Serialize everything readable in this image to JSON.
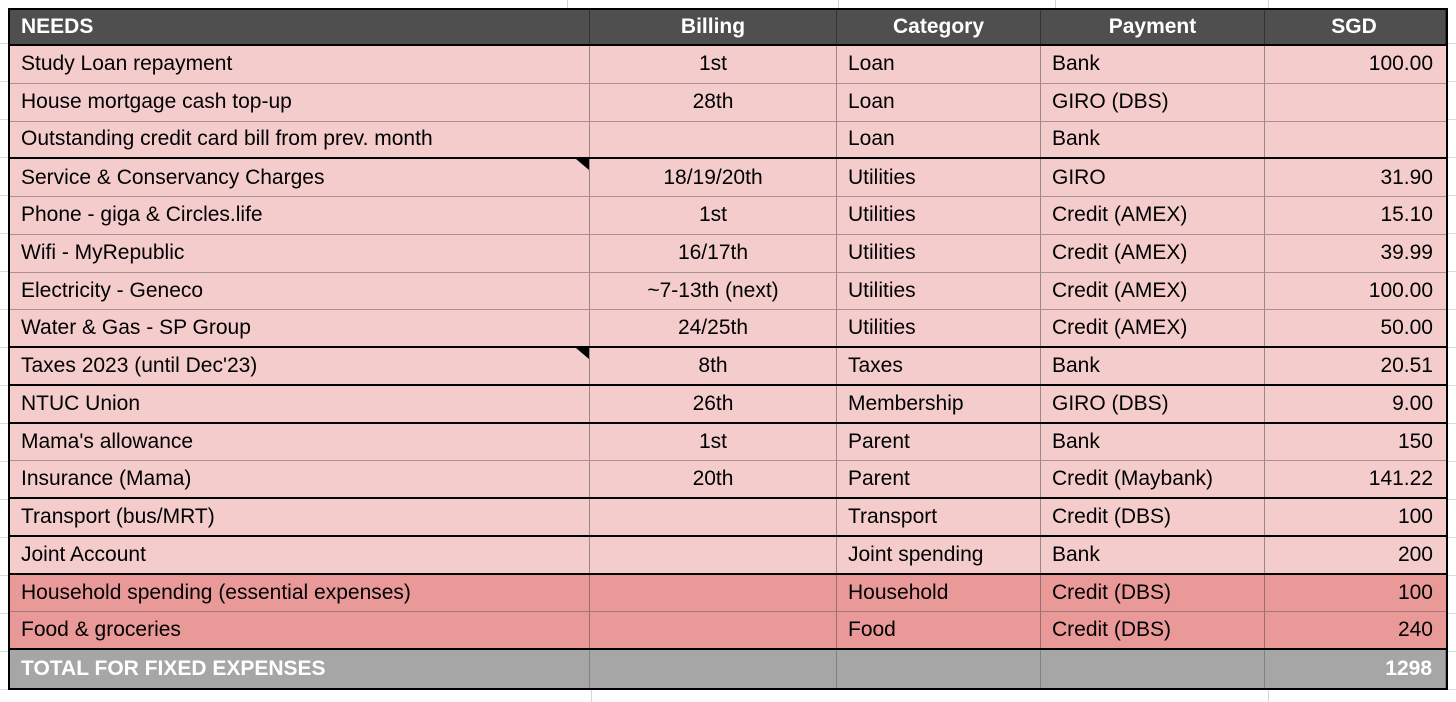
{
  "table": {
    "columns": [
      {
        "label": "NEEDS",
        "align": "left"
      },
      {
        "label": "Billing",
        "align": "center"
      },
      {
        "label": "Category",
        "align": "left"
      },
      {
        "label": "Payment",
        "align": "left"
      },
      {
        "label": "SGD",
        "align": "right"
      }
    ],
    "rows": [
      {
        "name": "Study Loan repayment",
        "billing": "1st",
        "category": "Loan",
        "payment": "Bank",
        "sgd": "100.00",
        "tone": "pink",
        "group_end": false,
        "note": false
      },
      {
        "name": "House mortgage cash top-up",
        "billing": "28th",
        "category": "Loan",
        "payment": "GIRO (DBS)",
        "sgd": "",
        "tone": "pink",
        "group_end": false,
        "note": false
      },
      {
        "name": "Outstanding credit card bill from prev. month",
        "billing": "",
        "category": "Loan",
        "payment": "Bank",
        "sgd": "",
        "tone": "pink",
        "group_end": true,
        "note": false
      },
      {
        "name": "Service & Conservancy Charges",
        "billing": "18/19/20th",
        "category": "Utilities",
        "payment": "GIRO",
        "sgd": "31.90",
        "tone": "pink",
        "group_end": false,
        "note": true
      },
      {
        "name": "Phone - giga & Circles.life",
        "billing": "1st",
        "category": "Utilities",
        "payment": "Credit (AMEX)",
        "sgd": "15.10",
        "tone": "pink",
        "group_end": false,
        "note": false
      },
      {
        "name": "Wifi - MyRepublic",
        "billing": "16/17th",
        "category": "Utilities",
        "payment": "Credit (AMEX)",
        "sgd": "39.99",
        "tone": "pink",
        "group_end": false,
        "note": false
      },
      {
        "name": "Electricity - Geneco",
        "billing": "~7-13th (next)",
        "category": "Utilities",
        "payment": "Credit (AMEX)",
        "sgd": "100.00",
        "tone": "pink",
        "group_end": false,
        "note": false
      },
      {
        "name": "Water & Gas - SP Group",
        "billing": "24/25th",
        "category": "Utilities",
        "payment": "Credit (AMEX)",
        "sgd": "50.00",
        "tone": "pink",
        "group_end": true,
        "note": false
      },
      {
        "name": "Taxes 2023 (until Dec'23)",
        "billing": "8th",
        "category": "Taxes",
        "payment": "Bank",
        "sgd": "20.51",
        "tone": "pink",
        "group_end": true,
        "note": true
      },
      {
        "name": "NTUC Union",
        "billing": "26th",
        "category": "Membership",
        "payment": "GIRO (DBS)",
        "sgd": "9.00",
        "tone": "pink",
        "group_end": true,
        "note": false
      },
      {
        "name": "Mama's allowance",
        "billing": "1st",
        "category": "Parent",
        "payment": "Bank",
        "sgd": "150",
        "tone": "pink",
        "group_end": false,
        "note": false
      },
      {
        "name": "Insurance (Mama)",
        "billing": "20th",
        "category": "Parent",
        "payment": "Credit (Maybank)",
        "sgd": "141.22",
        "tone": "pink",
        "group_end": true,
        "note": false
      },
      {
        "name": "Transport (bus/MRT)",
        "billing": "",
        "category": "Transport",
        "payment": "Credit (DBS)",
        "sgd": "100",
        "tone": "pink",
        "group_end": true,
        "note": false
      },
      {
        "name": "Joint Account",
        "billing": "",
        "category": "Joint spending",
        "payment": "Bank",
        "sgd": "200",
        "tone": "pink",
        "group_end": true,
        "note": false
      },
      {
        "name": "Household spending (essential expenses)",
        "billing": "",
        "category": "Household",
        "payment": "Credit (DBS)",
        "sgd": "100",
        "tone": "dark",
        "group_end": false,
        "note": false
      },
      {
        "name": "Food & groceries",
        "billing": "",
        "category": "Food",
        "payment": "Credit (DBS)",
        "sgd": "240",
        "tone": "dark",
        "group_end": true,
        "note": false
      }
    ],
    "total": {
      "label": "TOTAL FOR FIXED EXPENSES",
      "sgd": "1298"
    }
  },
  "colors": {
    "header_bg": "#4f4f4f",
    "row_pink": "#f4cccc",
    "row_dark_pink": "#ea9999",
    "total_bg": "#a6a6a6",
    "border_black": "#000000",
    "grid_line": "#8a8a8a",
    "header_text": "#ffffff",
    "body_text": "#000000"
  }
}
